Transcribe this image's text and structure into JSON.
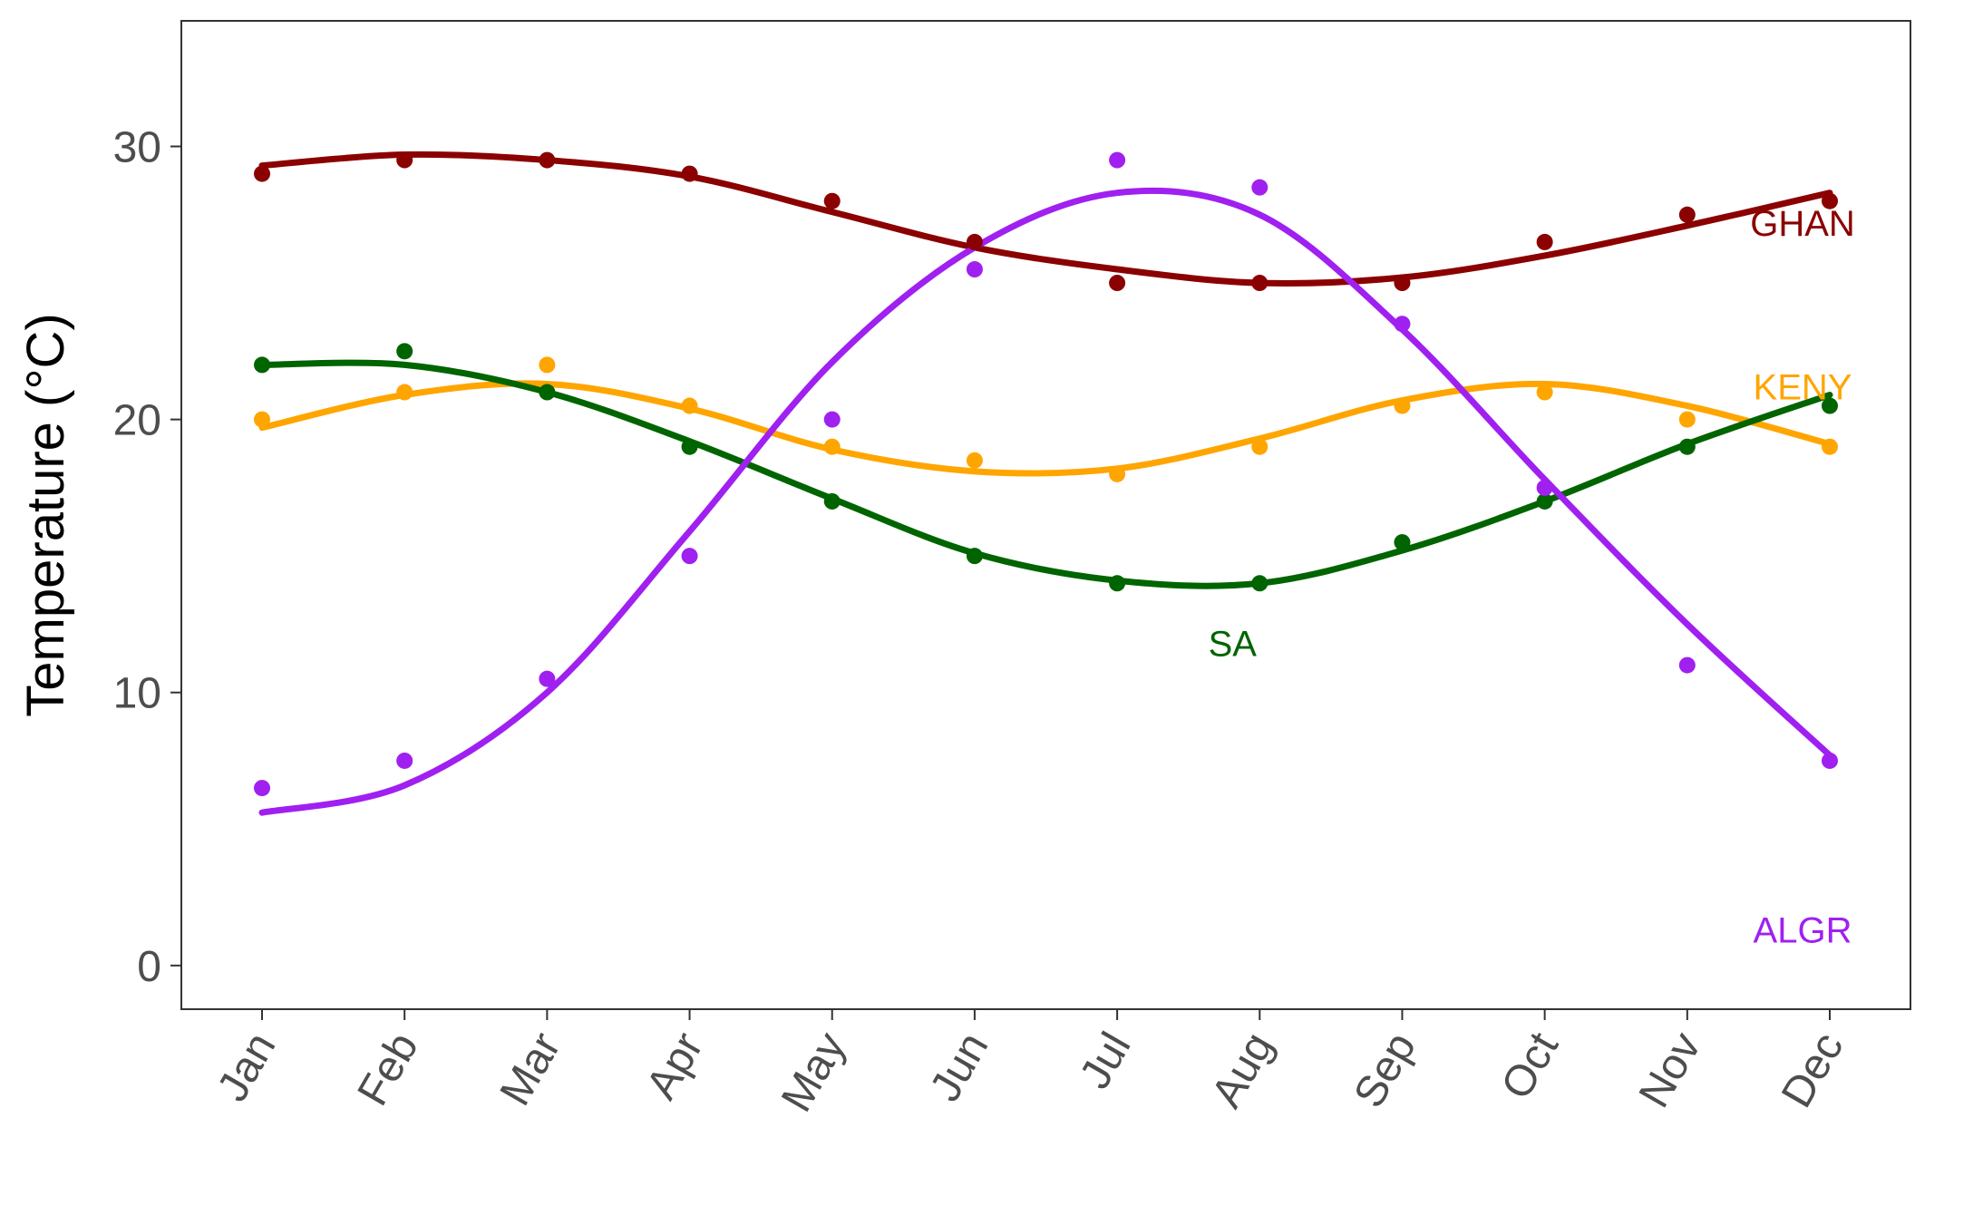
{
  "chart_data": {
    "type": "scatter",
    "ylabel": "Temperature (°C)",
    "xlabel": "",
    "title": "",
    "categories": [
      "Jan",
      "Feb",
      "Mar",
      "Apr",
      "May",
      "Jun",
      "Jul",
      "Aug",
      "Sep",
      "Oct",
      "Nov",
      "Dec"
    ],
    "ylim": [
      -1.6,
      34.6
    ],
    "yticks": [
      0,
      10,
      20,
      30
    ],
    "grid": false,
    "legend": "none (direct labels on plot)",
    "series": [
      {
        "name": "GHAN",
        "color": "#8B0000",
        "values": [
          29,
          29.5,
          29.5,
          29,
          28,
          26.5,
          25,
          25,
          25,
          26.5,
          27.5,
          28
        ],
        "fit": [
          29.3,
          29.7,
          29.5,
          28.9,
          27.6,
          26.3,
          25.5,
          25.0,
          25.2,
          26.0,
          27.1,
          28.3
        ],
        "label_anchor": [
          11.0,
          27.2
        ]
      },
      {
        "name": "KENY",
        "color": "#FFA500",
        "values": [
          20,
          21,
          22,
          20.5,
          19,
          18.5,
          18,
          19,
          20.5,
          21,
          20,
          19
        ],
        "fit": [
          19.7,
          20.9,
          21.3,
          20.4,
          18.9,
          18.1,
          18.2,
          19.3,
          20.7,
          21.3,
          20.5,
          19.1
        ],
        "label_anchor": [
          11.0,
          21.2
        ]
      },
      {
        "name": "SA",
        "color": "#006400",
        "values": [
          22,
          22.5,
          21,
          19,
          17,
          15,
          14,
          14,
          15.5,
          17,
          19,
          20.5
        ],
        "fit": [
          22.0,
          22.0,
          21.0,
          19.2,
          17.1,
          15.1,
          14.1,
          14.0,
          15.2,
          17.0,
          19.1,
          20.9
        ],
        "label_anchor": [
          7.0,
          11.8
        ]
      },
      {
        "name": "ALGR",
        "color": "#A020F0",
        "values": [
          6.5,
          7.5,
          10.5,
          15,
          20,
          25.5,
          29.5,
          28.5,
          23.5,
          17.5,
          11,
          7.5
        ],
        "fit": [
          5.6,
          6.6,
          10.0,
          15.9,
          22.1,
          26.3,
          28.3,
          27.5,
          23.3,
          17.8,
          12.5,
          7.7
        ],
        "label_anchor": [
          11.0,
          1.3
        ]
      }
    ]
  }
}
